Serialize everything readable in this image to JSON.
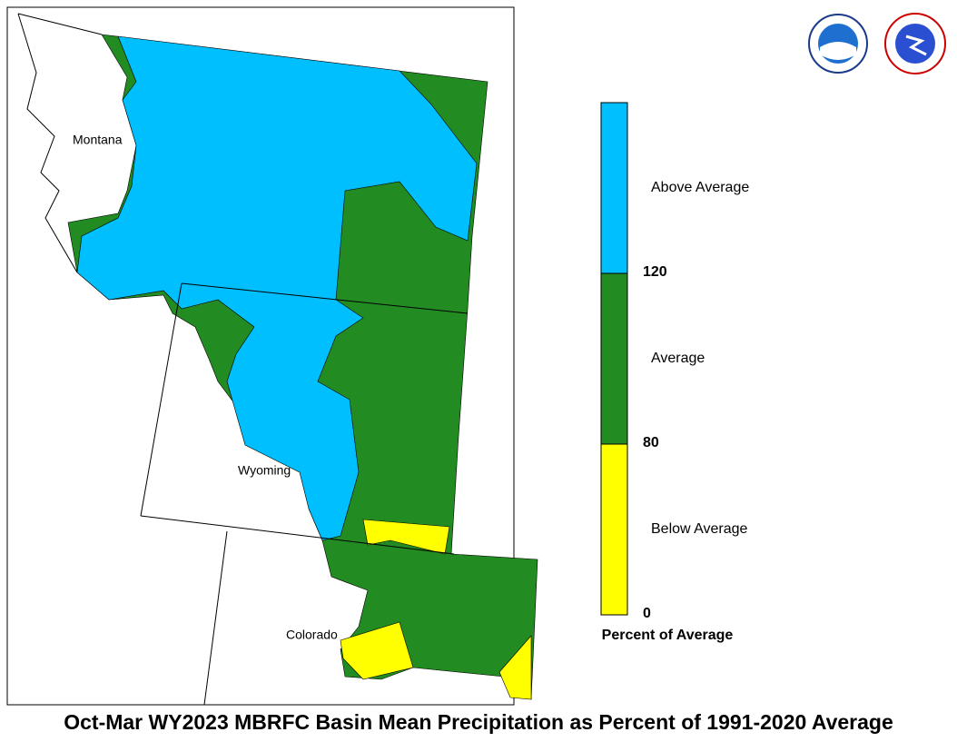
{
  "map": {
    "title": "Oct-Mar WY2023 MBRFC Basin Mean Precipitation as Percent of 1991-2020 Average",
    "states": [
      "Montana",
      "Wyoming",
      "Colorado"
    ],
    "legend": {
      "title": "Percent of Average",
      "categories": [
        {
          "label": "Above Average",
          "color": "#00bfff"
        },
        {
          "label": "Average",
          "color": "#228b22"
        },
        {
          "label": "Below Average",
          "color": "#ffff00"
        }
      ],
      "ticks": [
        120,
        80,
        0
      ]
    }
  }
}
